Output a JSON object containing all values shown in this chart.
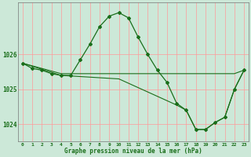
{
  "xlabel": "Graphe pression niveau de la mer (hPa)",
  "bg_color": "#cce8d8",
  "grid_color": "#ff9999",
  "line_color": "#1a6e1a",
  "marker": "D",
  "marker_size": 2.0,
  "xlim": [
    -0.5,
    23.5
  ],
  "ylim": [
    1023.5,
    1027.5
  ],
  "yticks": [
    1024,
    1025,
    1026
  ],
  "xticks": [
    0,
    1,
    2,
    3,
    4,
    5,
    6,
    7,
    8,
    9,
    10,
    11,
    12,
    13,
    14,
    15,
    16,
    17,
    18,
    19,
    20,
    21,
    22,
    23
  ],
  "series": [
    {
      "x": [
        0,
        1,
        2,
        3,
        4,
        5,
        6,
        7,
        8,
        9,
        10,
        11,
        12,
        13,
        14,
        15,
        16,
        17,
        18,
        19,
        20,
        21,
        22,
        23
      ],
      "y": [
        1025.75,
        1025.6,
        1025.55,
        1025.45,
        1025.4,
        1025.4,
        1025.85,
        1026.3,
        1026.8,
        1027.1,
        1027.2,
        1027.05,
        1026.5,
        1026.0,
        1025.55,
        1025.2,
        1024.6,
        1024.4,
        1023.85,
        1023.85,
        1024.05,
        1024.2,
        1025.0,
        1025.55
      ],
      "has_markers": true
    },
    {
      "x": [
        0,
        4,
        10,
        16,
        19,
        22,
        23
      ],
      "y": [
        1025.75,
        1025.45,
        1025.45,
        1025.45,
        1025.45,
        1025.45,
        1025.55
      ],
      "has_markers": false
    },
    {
      "x": [
        0,
        4,
        10,
        16,
        17,
        18,
        19,
        20,
        21,
        22,
        23
      ],
      "y": [
        1025.75,
        1025.4,
        1025.3,
        1024.55,
        1024.4,
        1023.85,
        1023.85,
        1024.05,
        1024.2,
        1025.0,
        1025.55
      ],
      "has_markers": false
    }
  ]
}
